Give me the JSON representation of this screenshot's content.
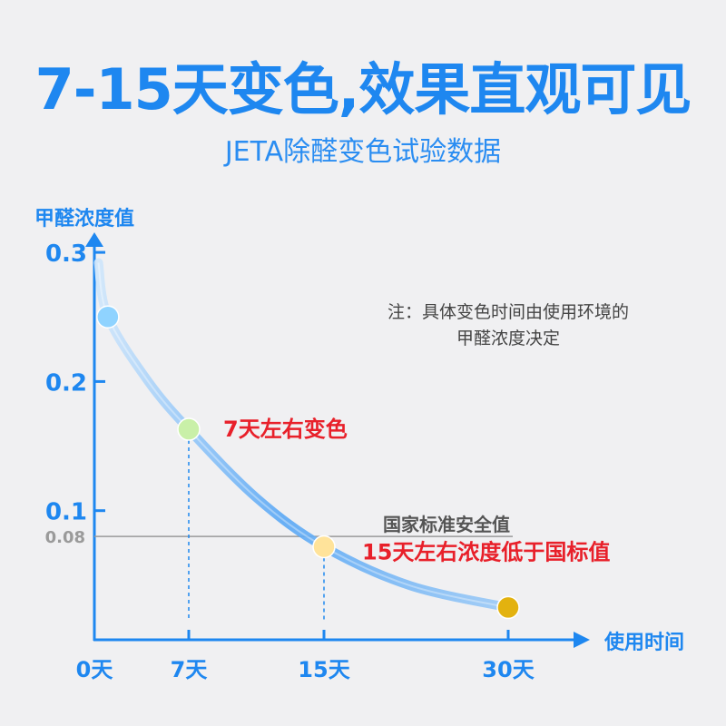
{
  "header": {
    "title": "7-15天变色,效果直观可见",
    "subtitle": "JETA除醛变色试验数据"
  },
  "note": {
    "line1": "注：具体变色时间由使用环境的",
    "line2": "甲醛浓度决定"
  },
  "colors": {
    "brand": "#1e87f0",
    "highlight": "#e8202a",
    "curve": "#5aa8f5",
    "reference": "#9a9a9a"
  },
  "chart_data": {
    "type": "line",
    "xlabel": "使用时间",
    "ylabel": "甲醛浓度值",
    "x_ticks": [
      {
        "value": 0,
        "label": "0天"
      },
      {
        "value": 7,
        "label": "7天"
      },
      {
        "value": 15,
        "label": "15天"
      },
      {
        "value": 30,
        "label": "30天"
      }
    ],
    "y_ticks": [
      {
        "value": 0.3,
        "label": "0.3"
      },
      {
        "value": 0.2,
        "label": "0.2"
      },
      {
        "value": 0.1,
        "label": "0.1"
      }
    ],
    "reference_line": {
      "value": 0.08,
      "tick_label": "0.08",
      "label": "国家标准安全值"
    },
    "series": [
      {
        "values": [
          {
            "x": 1,
            "y": 0.25,
            "color": "#8fd3ff"
          },
          {
            "x": 7,
            "y": 0.163,
            "color": "#c9f0a8",
            "annotation": "7天左右变色"
          },
          {
            "x": 15,
            "y": 0.072,
            "color": "#ffe39a",
            "annotation": "15天左右浓度低于国标值"
          },
          {
            "x": 30,
            "y": 0.025,
            "color": "#e3b20f"
          }
        ]
      }
    ],
    "curve": [
      [
        0.3,
        0.292
      ],
      [
        1,
        0.25
      ],
      [
        4,
        0.2
      ],
      [
        7,
        0.163
      ],
      [
        11,
        0.11
      ],
      [
        15,
        0.072
      ],
      [
        22,
        0.042
      ],
      [
        30,
        0.025
      ]
    ]
  }
}
